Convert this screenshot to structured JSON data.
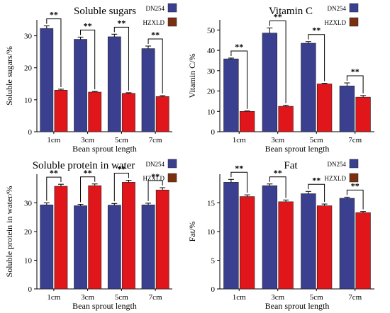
{
  "legend": [
    {
      "name": "DN254",
      "color": "#3a3f8f"
    },
    {
      "name": "HZXLD",
      "color": "#7a2f10"
    }
  ],
  "hzxld_fill": "#e0161a",
  "significance": "**",
  "chart_data": [
    {
      "type": "bar",
      "title": "Soluble sugars",
      "xlabel": "Bean sprout length",
      "ylabel": "Soluble sugars/%",
      "categories": [
        "1cm",
        "3cm",
        "5cm",
        "7cm"
      ],
      "ylim": [
        0,
        35
      ],
      "yticks": [
        0,
        10,
        20,
        30
      ],
      "series": [
        {
          "name": "DN254",
          "values": [
            32.3,
            28.9,
            29.7,
            26.0
          ],
          "errors": [
            0.8,
            0.7,
            0.8,
            0.8
          ]
        },
        {
          "name": "HZXLD",
          "values": [
            13.0,
            12.4,
            12.0,
            11.0
          ],
          "errors": [
            0.3,
            0.2,
            0.2,
            0.3
          ]
        }
      ]
    },
    {
      "type": "bar",
      "title": "Vitamin C",
      "xlabel": "Bean sprout length",
      "ylabel": "Vitamin C/%",
      "categories": [
        "1cm",
        "3cm",
        "5cm",
        "7cm"
      ],
      "ylim": [
        0,
        55
      ],
      "yticks": [
        0,
        10,
        20,
        30,
        40,
        50
      ],
      "series": [
        {
          "name": "DN254",
          "values": [
            35.8,
            48.5,
            43.5,
            22.5
          ],
          "errors": [
            0.4,
            2.5,
            0.8,
            1.5
          ]
        },
        {
          "name": "HZXLD",
          "values": [
            10.0,
            12.5,
            23.5,
            17.0
          ],
          "errors": [
            0.2,
            0.5,
            0.3,
            0.8
          ]
        }
      ]
    },
    {
      "type": "bar",
      "title": "Soluble protein in water",
      "xlabel": "Bean sprout length",
      "ylabel": "Soluble protein in water/%",
      "categories": [
        "1cm",
        "3cm",
        "5cm",
        "7cm"
      ],
      "ylim": [
        0,
        40
      ],
      "yticks": [
        0,
        10,
        20,
        30
      ],
      "series": [
        {
          "name": "DN254",
          "values": [
            29.3,
            29.0,
            29.2,
            29.3
          ],
          "errors": [
            0.7,
            0.5,
            0.6,
            0.6
          ]
        },
        {
          "name": "HZXLD",
          "values": [
            35.8,
            36.0,
            37.2,
            34.5
          ],
          "errors": [
            0.7,
            0.6,
            0.7,
            0.8
          ]
        }
      ]
    },
    {
      "type": "bar",
      "title": "Fat",
      "xlabel": "Bean sprout length",
      "ylabel": "Fat/%",
      "categories": [
        "1cm",
        "3cm",
        "5cm",
        "7cm"
      ],
      "ylim": [
        0,
        20
      ],
      "yticks": [
        0,
        5,
        10,
        15
      ],
      "series": [
        {
          "name": "DN254",
          "values": [
            18.6,
            18.0,
            16.6,
            15.8
          ],
          "errors": [
            0.5,
            0.3,
            0.4,
            0.2
          ]
        },
        {
          "name": "HZXLD",
          "values": [
            16.1,
            15.2,
            14.5,
            13.3
          ],
          "errors": [
            0.3,
            0.3,
            0.3,
            0.2
          ]
        }
      ]
    }
  ]
}
